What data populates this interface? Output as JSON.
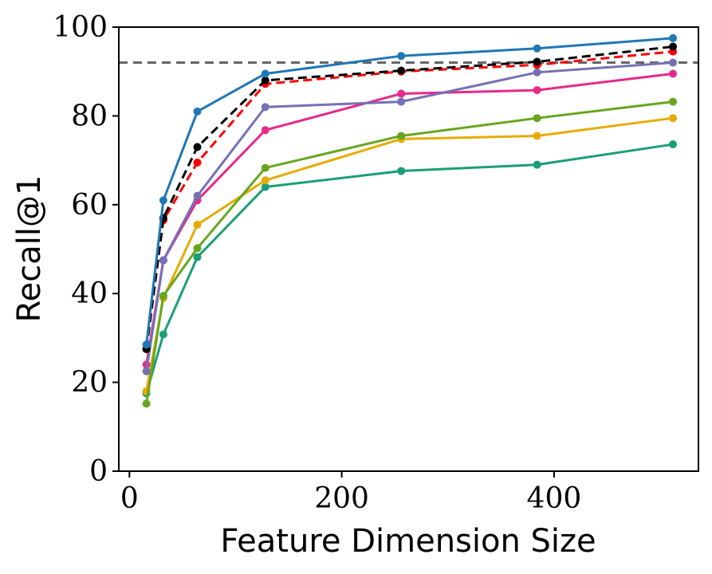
{
  "chart_data": {
    "type": "line",
    "title": "",
    "xlabel": "Feature Dimension Size",
    "ylabel": "Recall@1",
    "xlim": [
      -10,
      536
    ],
    "ylim": [
      0,
      100
    ],
    "xticks": [
      0,
      200,
      400
    ],
    "yticks": [
      0,
      20,
      40,
      60,
      80,
      100
    ],
    "grid": false,
    "legend": "none",
    "x": [
      16,
      32,
      64,
      128,
      256,
      384,
      512
    ],
    "reference_line": {
      "y": 92,
      "color": "#666666",
      "style": "dashed"
    },
    "series": [
      {
        "color": "#1f77b4",
        "style": "solid",
        "values": [
          28.5,
          61,
          81,
          89.5,
          93.5,
          95.2,
          97.5
        ]
      },
      {
        "color": "#000000",
        "style": "dashed",
        "values": [
          27.5,
          57,
          73,
          88,
          90.2,
          92.2,
          95.6
        ]
      },
      {
        "color": "#ff0000",
        "style": "dashed",
        "values": [
          27.5,
          56.5,
          69.5,
          87.2,
          90,
          91.5,
          94.5
        ]
      },
      {
        "color": "#7570b3",
        "style": "solid",
        "values": [
          22.5,
          47.5,
          62,
          82,
          83.2,
          89.8,
          92
        ]
      },
      {
        "color": "#e7298a",
        "style": "solid",
        "values": [
          24,
          47.5,
          61,
          76.8,
          85,
          85.8,
          89.5
        ]
      },
      {
        "color": "#66a61e",
        "style": "solid",
        "values": [
          15.2,
          39.5,
          50.2,
          68.3,
          75.5,
          79.5,
          83.2
        ]
      },
      {
        "color": "#e6ab02",
        "style": "solid",
        "values": [
          18,
          39,
          55.5,
          65.5,
          74.8,
          75.5,
          79.5
        ]
      },
      {
        "color": "#1b9e77",
        "style": "solid",
        "values": [
          17.5,
          30.8,
          48.2,
          64,
          67.6,
          69,
          73.6
        ]
      }
    ]
  }
}
